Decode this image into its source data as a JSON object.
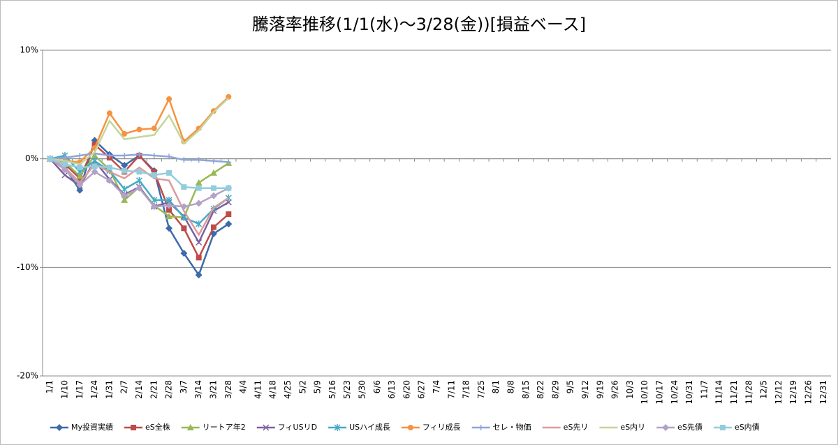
{
  "chart_data": {
    "type": "line",
    "title": "騰落率推移(1/1(水)～3/28(金))[損益ベース]",
    "categories": [
      "1/1",
      "1/10",
      "1/17",
      "1/24",
      "1/31",
      "2/7",
      "2/14",
      "2/21",
      "2/28",
      "3/7",
      "3/14",
      "3/21",
      "3/28",
      "4/4",
      "4/11",
      "4/18",
      "4/25",
      "5/2",
      "5/9",
      "5/16",
      "5/23",
      "5/30",
      "6/6",
      "6/13",
      "6/20",
      "6/27",
      "7/4",
      "7/11",
      "7/18",
      "7/25",
      "8/1",
      "8/8",
      "8/15",
      "8/22",
      "8/29",
      "9/5",
      "9/12",
      "9/19",
      "9/26",
      "10/3",
      "10/10",
      "10/17",
      "10/24",
      "10/31",
      "11/7",
      "11/14",
      "11/21",
      "11/28",
      "12/5",
      "12/12",
      "12/19",
      "12/26",
      "12/31"
    ],
    "ylim": [
      -20,
      10
    ],
    "yticks": [
      {
        "value": 10,
        "label": "10%"
      },
      {
        "value": 0,
        "label": "0%"
      },
      {
        "value": -10,
        "label": "-10%"
      },
      {
        "value": -20,
        "label": "-20%"
      }
    ],
    "grid": true,
    "legend": "bottom",
    "series": [
      {
        "name": "My投資実績",
        "color": "#3d6aa8",
        "marker": "diamond",
        "values": [
          0,
          -0.8,
          -2.9,
          1.7,
          0.4,
          -0.6,
          0.3,
          -1.1,
          -6.4,
          -8.7,
          -10.7,
          -6.9,
          -6.0,
          null,
          null,
          null,
          null,
          null,
          null,
          null,
          null,
          null,
          null,
          null,
          null,
          null,
          null,
          null,
          null,
          null,
          null,
          null,
          null,
          null,
          null,
          null,
          null,
          null,
          null,
          null,
          null,
          null,
          null,
          null,
          null,
          null,
          null,
          null,
          null,
          null,
          null,
          null,
          null
        ]
      },
      {
        "name": "eS全株",
        "color": "#be4b48",
        "marker": "square",
        "values": [
          0,
          -0.5,
          -1.8,
          1.3,
          0.1,
          -1.2,
          0.3,
          -1.2,
          -4.7,
          -6.4,
          -9.1,
          -6.3,
          -5.1,
          null,
          null,
          null,
          null,
          null,
          null,
          null,
          null,
          null,
          null,
          null,
          null,
          null,
          null,
          null,
          null,
          null,
          null,
          null,
          null,
          null,
          null,
          null,
          null,
          null,
          null,
          null,
          null,
          null,
          null,
          null,
          null,
          null,
          null,
          null,
          null,
          null,
          null,
          null,
          null
        ]
      },
      {
        "name": "リートア年2",
        "color": "#98b954",
        "marker": "triangle",
        "values": [
          0,
          -0.3,
          -1.6,
          0.3,
          -1.0,
          -3.8,
          -2.6,
          -4.3,
          -5.3,
          -5.4,
          -2.2,
          -1.3,
          -0.4,
          null,
          null,
          null,
          null,
          null,
          null,
          null,
          null,
          null,
          null,
          null,
          null,
          null,
          null,
          null,
          null,
          null,
          null,
          null,
          null,
          null,
          null,
          null,
          null,
          null,
          null,
          null,
          null,
          null,
          null,
          null,
          null,
          null,
          null,
          null,
          null,
          null,
          null,
          null,
          null
        ]
      },
      {
        "name": "フィUSリD",
        "color": "#7d60a0",
        "marker": "x",
        "values": [
          0,
          -1.5,
          -2.5,
          -0.2,
          -1.9,
          -3.3,
          -2.6,
          -4.4,
          -4.0,
          -5.3,
          -7.7,
          -4.8,
          -4.0,
          null,
          null,
          null,
          null,
          null,
          null,
          null,
          null,
          null,
          null,
          null,
          null,
          null,
          null,
          null,
          null,
          null,
          null,
          null,
          null,
          null,
          null,
          null,
          null,
          null,
          null,
          null,
          null,
          null,
          null,
          null,
          null,
          null,
          null,
          null,
          null,
          null,
          null,
          null,
          null
        ]
      },
      {
        "name": "USハイ成長",
        "color": "#46aac5",
        "marker": "star",
        "values": [
          0,
          0.3,
          -1.2,
          -0.2,
          -1.1,
          -2.8,
          -2.0,
          -3.8,
          -3.8,
          -5.4,
          -6.0,
          -4.6,
          -3.6,
          null,
          null,
          null,
          null,
          null,
          null,
          null,
          null,
          null,
          null,
          null,
          null,
          null,
          null,
          null,
          null,
          null,
          null,
          null,
          null,
          null,
          null,
          null,
          null,
          null,
          null,
          null,
          null,
          null,
          null,
          null,
          null,
          null,
          null,
          null,
          null,
          null,
          null,
          null,
          null
        ]
      },
      {
        "name": "フィリ成長",
        "color": "#f69240",
        "marker": "circle",
        "values": [
          0,
          -0.2,
          -0.3,
          1.0,
          4.2,
          2.3,
          2.7,
          2.8,
          5.5,
          1.6,
          2.8,
          4.4,
          5.7,
          null,
          null,
          null,
          null,
          null,
          null,
          null,
          null,
          null,
          null,
          null,
          null,
          null,
          null,
          null,
          null,
          null,
          null,
          null,
          null,
          null,
          null,
          null,
          null,
          null,
          null,
          null,
          null,
          null,
          null,
          null,
          null,
          null,
          null,
          null,
          null,
          null,
          null,
          null,
          null
        ]
      },
      {
        "name": "セレ・物価",
        "color": "#8ea5d8",
        "marker": "plus",
        "values": [
          0,
          0.1,
          0.3,
          0.5,
          0.3,
          0.3,
          0.4,
          0.3,
          0.2,
          -0.1,
          -0.1,
          -0.2,
          -0.3,
          null,
          null,
          null,
          null,
          null,
          null,
          null,
          null,
          null,
          null,
          null,
          null,
          null,
          null,
          null,
          null,
          null,
          null,
          null,
          null,
          null,
          null,
          null,
          null,
          null,
          null,
          null,
          null,
          null,
          null,
          null,
          null,
          null,
          null,
          null,
          null,
          null,
          null,
          null,
          null
        ]
      },
      {
        "name": "eS先リ",
        "color": "#dc9b99",
        "marker": "none",
        "values": [
          0,
          -0.8,
          -2.2,
          -0.5,
          -1.2,
          -1.8,
          -0.8,
          -1.8,
          -2.0,
          -4.8,
          -7.0,
          -4.5,
          -3.6,
          null,
          null,
          null,
          null,
          null,
          null,
          null,
          null,
          null,
          null,
          null,
          null,
          null,
          null,
          null,
          null,
          null,
          null,
          null,
          null,
          null,
          null,
          null,
          null,
          null,
          null,
          null,
          null,
          null,
          null,
          null,
          null,
          null,
          null,
          null,
          null,
          null,
          null,
          null,
          null
        ]
      },
      {
        "name": "eS内リ",
        "color": "#c3d69b",
        "marker": "none",
        "values": [
          0,
          -0.2,
          -0.5,
          0.6,
          3.5,
          1.8,
          2.0,
          2.2,
          4.0,
          1.4,
          2.6,
          4.3,
          5.6,
          null,
          null,
          null,
          null,
          null,
          null,
          null,
          null,
          null,
          null,
          null,
          null,
          null,
          null,
          null,
          null,
          null,
          null,
          null,
          null,
          null,
          null,
          null,
          null,
          null,
          null,
          null,
          null,
          null,
          null,
          null,
          null,
          null,
          null,
          null,
          null,
          null,
          null,
          null,
          null
        ]
      },
      {
        "name": "eS先債",
        "color": "#b3a2c7",
        "marker": "diamond",
        "values": [
          0,
          -1.0,
          -2.4,
          -1.2,
          -2.0,
          -3.4,
          -2.7,
          -4.4,
          -4.3,
          -4.4,
          -4.1,
          -3.4,
          -2.7,
          null,
          null,
          null,
          null,
          null,
          null,
          null,
          null,
          null,
          null,
          null,
          null,
          null,
          null,
          null,
          null,
          null,
          null,
          null,
          null,
          null,
          null,
          null,
          null,
          null,
          null,
          null,
          null,
          null,
          null,
          null,
          null,
          null,
          null,
          null,
          null,
          null,
          null,
          null,
          null
        ]
      },
      {
        "name": "eS内債",
        "color": "#93cddd",
        "marker": "square",
        "values": [
          0,
          -0.5,
          -0.8,
          -0.7,
          -0.8,
          -1.1,
          -1.2,
          -1.5,
          -1.3,
          -2.6,
          -2.7,
          -2.7,
          -2.7,
          null,
          null,
          null,
          null,
          null,
          null,
          null,
          null,
          null,
          null,
          null,
          null,
          null,
          null,
          null,
          null,
          null,
          null,
          null,
          null,
          null,
          null,
          null,
          null,
          null,
          null,
          null,
          null,
          null,
          null,
          null,
          null,
          null,
          null,
          null,
          null,
          null,
          null,
          null,
          null
        ]
      }
    ]
  }
}
